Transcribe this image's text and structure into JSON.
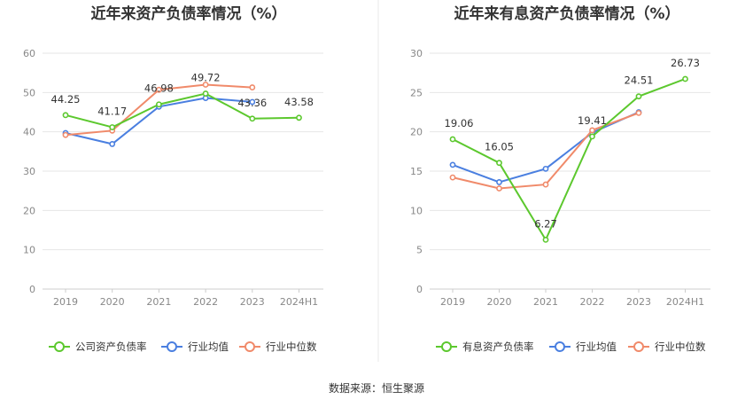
{
  "source": "数据来源：恒生聚源",
  "chart_data": [
    {
      "type": "line",
      "title": "近年来资产负债率情况（%）",
      "categories": [
        "2019",
        "2020",
        "2021",
        "2022",
        "2023",
        "2024H1"
      ],
      "ylim": [
        0,
        60
      ],
      "yticks": [
        0,
        10,
        20,
        30,
        40,
        50,
        60
      ],
      "grid": true,
      "legend_position": "bottom",
      "series": [
        {
          "name": "公司资产负债率",
          "color": "#5cc82e",
          "values": [
            44.25,
            41.17,
            46.98,
            49.72,
            43.36,
            43.58
          ],
          "labels": [
            "44.25",
            "41.17",
            "46.98",
            "49.72",
            "43.36",
            "43.58"
          ]
        },
        {
          "name": "行业均值",
          "color": "#4a7fe0",
          "values": [
            39.7,
            36.9,
            46.4,
            48.6,
            47.6,
            null
          ]
        },
        {
          "name": "行业中位数",
          "color": "#f08a6a",
          "values": [
            39.2,
            40.3,
            50.7,
            52.0,
            51.3,
            null
          ]
        }
      ]
    },
    {
      "type": "line",
      "title": "近年来有息资产负债率情况（%）",
      "categories": [
        "2019",
        "2020",
        "2021",
        "2022",
        "2023",
        "2024H1"
      ],
      "ylim": [
        0,
        30
      ],
      "yticks": [
        0,
        5,
        10,
        15,
        20,
        25,
        30
      ],
      "grid": true,
      "legend_position": "bottom",
      "series": [
        {
          "name": "有息资产负债率",
          "color": "#5cc82e",
          "values": [
            19.06,
            16.05,
            6.27,
            19.41,
            24.51,
            26.73
          ],
          "labels": [
            "19.06",
            "16.05",
            "6.27",
            "19.41",
            "24.51",
            "26.73"
          ]
        },
        {
          "name": "行业均值",
          "color": "#4a7fe0",
          "values": [
            15.8,
            13.6,
            15.3,
            19.9,
            22.5,
            null
          ]
        },
        {
          "name": "行业中位数",
          "color": "#f08a6a",
          "values": [
            14.2,
            12.8,
            13.3,
            20.2,
            22.4,
            null
          ]
        }
      ]
    }
  ]
}
